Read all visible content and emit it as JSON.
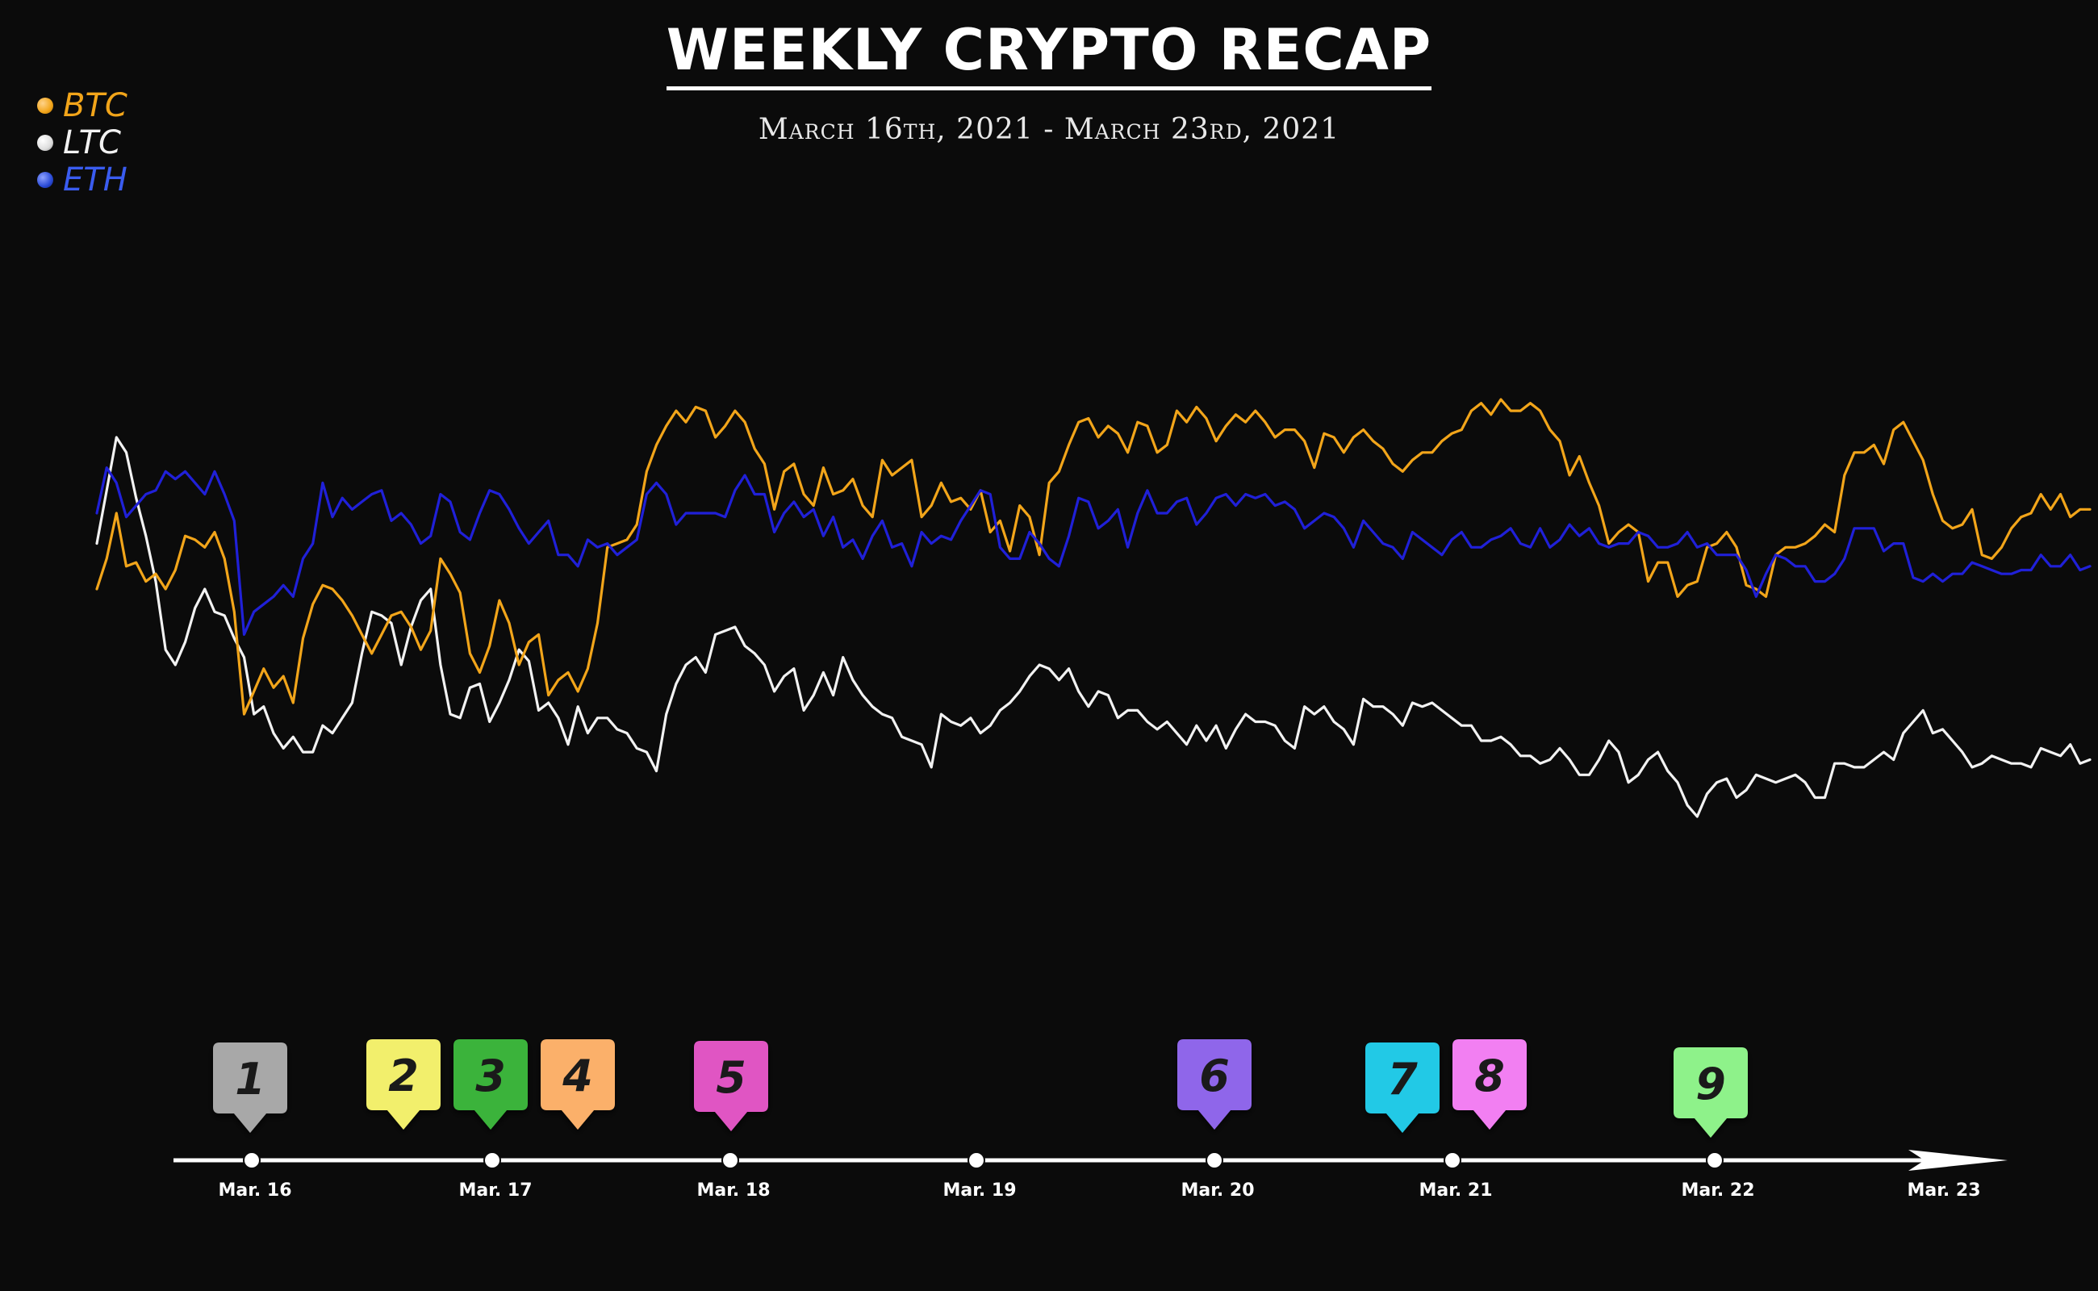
{
  "chart_data": {
    "type": "line",
    "title": "WEEKLY CRYPTO RECAP",
    "subtitle": "March 16th, 2021 - March 23rd, 2021",
    "legend_position": "top-left",
    "grid": false,
    "x_ticks": [
      "Mar. 16",
      "Mar. 17",
      "Mar. 18",
      "Mar. 19",
      "Mar. 20",
      "Mar. 21",
      "Mar. 22",
      "Mar. 23"
    ],
    "ylim": [
      0,
      1000
    ],
    "series": [
      {
        "name": "BTC",
        "color": "#f2a51a",
        "values": [
          500,
          540,
          600,
          530,
          535,
          510,
          520,
          500,
          525,
          570,
          565,
          555,
          575,
          540,
          470,
          335,
          365,
          395,
          370,
          385,
          350,
          435,
          480,
          505,
          500,
          485,
          465,
          440,
          415,
          440,
          465,
          470,
          450,
          420,
          445,
          540,
          520,
          495,
          415,
          390,
          425,
          485,
          455,
          400,
          430,
          440,
          360,
          380,
          390,
          365,
          395,
          455,
          555,
          560,
          565,
          585,
          655,
          690,
          715,
          735,
          720,
          740,
          735,
          700,
          715,
          735,
          720,
          685,
          665,
          605,
          655,
          665,
          625,
          610,
          660,
          625,
          630,
          645,
          610,
          595,
          670,
          650,
          660,
          670,
          595,
          610,
          640,
          615,
          620,
          605,
          630,
          575,
          590,
          550,
          610,
          595,
          545,
          640,
          655,
          690,
          720,
          725,
          700,
          715,
          705,
          680,
          720,
          715,
          680,
          690,
          735,
          720,
          740,
          725,
          695,
          715,
          730,
          720,
          735,
          720,
          700,
          710,
          710,
          695,
          660,
          705,
          700,
          680,
          700,
          710,
          695,
          685,
          665,
          655,
          670,
          680,
          680,
          695,
          705,
          710,
          735,
          745,
          730,
          750,
          735,
          735,
          745,
          735,
          710,
          695,
          650,
          675,
          640,
          610,
          560,
          575,
          585,
          575,
          510,
          535,
          535,
          490,
          505,
          510,
          555,
          560,
          575,
          555,
          505,
          500,
          490,
          545,
          555,
          555,
          560,
          570,
          585,
          575,
          650,
          680,
          680,
          690,
          665,
          710,
          720,
          695,
          670,
          625,
          590,
          580,
          585,
          605,
          545,
          540,
          555,
          580,
          595,
          600,
          625,
          605,
          625,
          595,
          605,
          605
        ],
        "line_label": "BTC"
      },
      {
        "name": "LTC",
        "color": "#f2f2f2",
        "values": [
          560,
          630,
          700,
          680,
          620,
          570,
          510,
          420,
          400,
          430,
          475,
          500,
          470,
          465,
          435,
          410,
          335,
          345,
          310,
          290,
          305,
          285,
          285,
          320,
          310,
          330,
          350,
          415,
          470,
          465,
          455,
          400,
          450,
          485,
          500,
          400,
          335,
          330,
          370,
          375,
          325,
          350,
          380,
          420,
          405,
          340,
          350,
          330,
          295,
          345,
          310,
          330,
          330,
          315,
          310,
          290,
          285,
          260,
          335,
          375,
          400,
          410,
          390,
          440,
          445,
          450,
          425,
          415,
          400,
          365,
          385,
          395,
          340,
          360,
          390,
          360,
          410,
          380,
          360,
          345,
          335,
          330,
          305,
          300,
          295,
          265,
          335,
          325,
          320,
          330,
          310,
          320,
          340,
          350,
          365,
          385,
          400,
          395,
          380,
          395,
          365,
          345,
          365,
          360,
          330,
          340,
          340,
          325,
          315,
          325,
          310,
          295,
          320,
          300,
          320,
          290,
          315,
          335,
          325,
          325,
          320,
          300,
          290,
          345,
          335,
          345,
          325,
          315,
          295,
          355,
          345,
          345,
          335,
          320,
          350,
          345,
          350,
          340,
          330,
          320,
          320,
          300,
          300,
          305,
          295,
          280,
          280,
          270,
          275,
          290,
          275,
          255,
          255,
          275,
          300,
          285,
          245,
          255,
          275,
          285,
          260,
          245,
          215,
          200,
          230,
          245,
          250,
          225,
          235,
          255,
          250,
          245,
          250,
          255,
          245,
          225,
          225,
          270,
          270,
          265,
          265,
          275,
          285,
          275,
          310,
          325,
          340,
          310,
          315,
          300,
          285,
          265,
          270,
          280,
          275,
          270,
          270,
          265,
          290,
          285,
          280,
          295,
          270,
          275
        ]
      },
      {
        "name": "ETH",
        "color": "#2020d8",
        "values": [
          600,
          660,
          640,
          595,
          610,
          625,
          630,
          655,
          645,
          655,
          640,
          625,
          655,
          625,
          590,
          440,
          470,
          480,
          490,
          505,
          490,
          540,
          560,
          640,
          595,
          620,
          605,
          615,
          625,
          630,
          590,
          600,
          585,
          560,
          570,
          625,
          615,
          575,
          565,
          600,
          630,
          625,
          605,
          580,
          560,
          575,
          590,
          545,
          545,
          530,
          565,
          555,
          560,
          545,
          555,
          565,
          625,
          640,
          625,
          585,
          600,
          600,
          600,
          600,
          595,
          630,
          650,
          625,
          625,
          575,
          600,
          615,
          595,
          605,
          570,
          595,
          555,
          565,
          540,
          570,
          590,
          555,
          560,
          530,
          575,
          560,
          570,
          565,
          590,
          610,
          630,
          625,
          555,
          540,
          540,
          575,
          560,
          540,
          530,
          570,
          620,
          615,
          580,
          590,
          605,
          555,
          600,
          630,
          600,
          600,
          615,
          620,
          585,
          600,
          620,
          625,
          610,
          625,
          620,
          625,
          610,
          615,
          605,
          580,
          590,
          600,
          595,
          580,
          555,
          590,
          575,
          560,
          555,
          540,
          575,
          565,
          555,
          545,
          565,
          575,
          555,
          555,
          565,
          570,
          580,
          560,
          555,
          580,
          555,
          565,
          585,
          570,
          580,
          560,
          555,
          560,
          560,
          575,
          570,
          555,
          555,
          560,
          575,
          555,
          560,
          545,
          545,
          545,
          525,
          490,
          520,
          545,
          540,
          530,
          530,
          510,
          510,
          520,
          540,
          580,
          580,
          580,
          550,
          560,
          560,
          515,
          510,
          520,
          510,
          520,
          520,
          535,
          530,
          525,
          520,
          520,
          525,
          525,
          545,
          530,
          530,
          545,
          525,
          530
        ],
        "line_label": "ETH"
      }
    ],
    "events": [
      {
        "label": "1",
        "color": "#a8a8a8"
      },
      {
        "label": "2",
        "color": "#f2ef6c"
      },
      {
        "label": "3",
        "color": "#3ab33a"
      },
      {
        "label": "4",
        "color": "#fbb06a"
      },
      {
        "label": "5",
        "color": "#e055c3"
      },
      {
        "label": "6",
        "color": "#8f66ea"
      },
      {
        "label": "7",
        "color": "#23c9e6"
      },
      {
        "label": "8",
        "color": "#f27ff2"
      },
      {
        "label": "9",
        "color": "#8ef28a"
      }
    ]
  },
  "legend": [
    {
      "label": "BTC",
      "color": "#f2a51a"
    },
    {
      "label": "LTC",
      "color": "#f2f2f2"
    },
    {
      "label": "ETH",
      "color": "#2a4bd8"
    }
  ]
}
